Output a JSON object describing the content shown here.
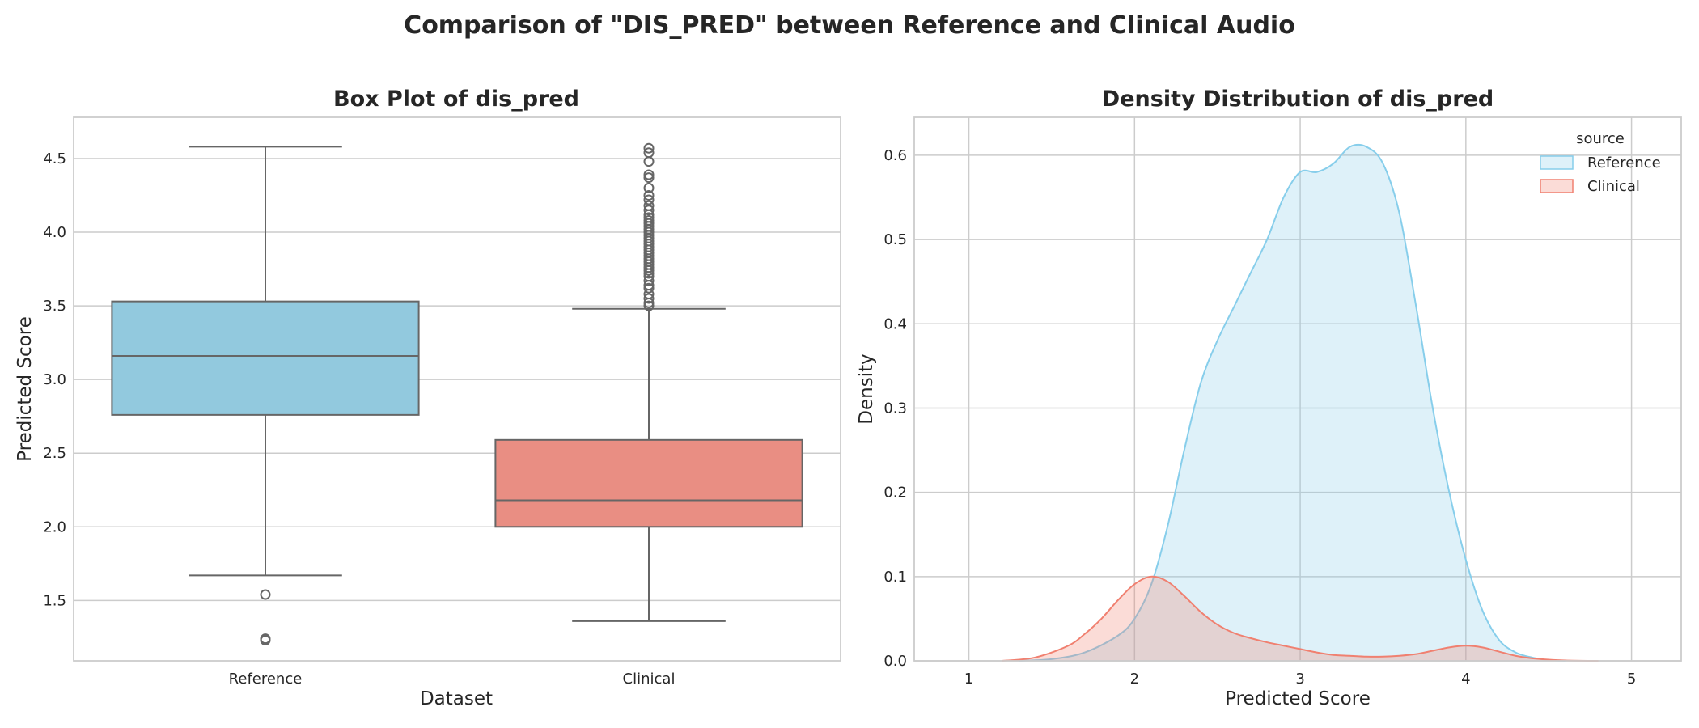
{
  "figure": {
    "suptitle": "Comparison of \"DIS_PRED\" between Reference and Clinical Audio"
  },
  "colors": {
    "reference": "#92C9DE",
    "reference_line": "#87CEEB",
    "clinical": "#E98E83",
    "clinical_line": "#F08070",
    "median_whisker": "#666666"
  },
  "chart_data": [
    {
      "type": "box",
      "title": "Box Plot of dis_pred",
      "xlabel": "Dataset",
      "ylabel": "Predicted Score",
      "categories": [
        "Reference",
        "Clinical"
      ],
      "ylim": [
        1.09,
        4.78
      ],
      "yticks": [
        1.5,
        2.0,
        2.5,
        3.0,
        3.5,
        4.0,
        4.5
      ],
      "ytick_labels": [
        "1.5",
        "2.0",
        "2.5",
        "3.0",
        "3.5",
        "4.0",
        "4.5"
      ],
      "grid": true,
      "boxes": [
        {
          "name": "Reference",
          "whisker_low": 1.67,
          "q1": 2.76,
          "median": 3.16,
          "q3": 3.53,
          "whisker_high": 4.58,
          "outliers": [
            1.54,
            1.24,
            1.23
          ]
        },
        {
          "name": "Clinical",
          "whisker_low": 1.36,
          "q1": 2.0,
          "median": 2.18,
          "q3": 2.59,
          "whisker_high": 3.48,
          "outliers": [
            3.5,
            3.52,
            3.55,
            3.58,
            3.62,
            3.64,
            3.67,
            3.7,
            3.72,
            3.74,
            3.76,
            3.78,
            3.8,
            3.82,
            3.84,
            3.86,
            3.88,
            3.9,
            3.92,
            3.94,
            3.96,
            3.98,
            4.0,
            4.02,
            4.04,
            4.06,
            4.08,
            4.1,
            4.12,
            4.15,
            4.18,
            4.22,
            4.25,
            4.3,
            4.37,
            4.39,
            4.48,
            4.54,
            4.57
          ]
        }
      ]
    },
    {
      "type": "area",
      "title": "Density Distribution of dis_pred",
      "xlabel": "Predicted Score",
      "ylabel": "Density",
      "xlim": [
        0.67,
        5.3
      ],
      "ylim": [
        0,
        0.645
      ],
      "xticks": [
        1,
        2,
        3,
        4,
        5
      ],
      "xtick_labels": [
        "1",
        "2",
        "3",
        "4",
        "5"
      ],
      "yticks": [
        0.0,
        0.1,
        0.2,
        0.3,
        0.4,
        0.5,
        0.6
      ],
      "ytick_labels": [
        "0.0",
        "0.1",
        "0.2",
        "0.3",
        "0.4",
        "0.5",
        "0.6"
      ],
      "grid": true,
      "legend": {
        "title": "source",
        "placement": "top-right"
      },
      "series": [
        {
          "name": "Reference",
          "x": [
            1.3,
            1.5,
            1.7,
            1.9,
            2.0,
            2.1,
            2.2,
            2.3,
            2.4,
            2.5,
            2.6,
            2.7,
            2.8,
            2.9,
            3.0,
            3.1,
            3.2,
            3.3,
            3.4,
            3.5,
            3.6,
            3.7,
            3.8,
            3.9,
            4.0,
            4.1,
            4.2,
            4.3,
            4.4,
            4.5,
            4.6
          ],
          "y": [
            0.0,
            0.002,
            0.01,
            0.03,
            0.05,
            0.09,
            0.16,
            0.25,
            0.33,
            0.38,
            0.42,
            0.46,
            0.5,
            0.55,
            0.58,
            0.58,
            0.59,
            0.61,
            0.61,
            0.59,
            0.53,
            0.42,
            0.3,
            0.2,
            0.12,
            0.06,
            0.025,
            0.01,
            0.004,
            0.001,
            0.0
          ]
        },
        {
          "name": "Clinical",
          "x": [
            1.2,
            1.4,
            1.6,
            1.7,
            1.8,
            1.9,
            2.0,
            2.1,
            2.2,
            2.3,
            2.4,
            2.5,
            2.6,
            2.7,
            2.8,
            2.9,
            3.0,
            3.1,
            3.2,
            3.3,
            3.4,
            3.5,
            3.6,
            3.7,
            3.8,
            3.9,
            4.0,
            4.1,
            4.2,
            4.3,
            4.4,
            4.6,
            4.8
          ],
          "y": [
            0.0,
            0.004,
            0.018,
            0.032,
            0.05,
            0.072,
            0.091,
            0.1,
            0.094,
            0.077,
            0.058,
            0.043,
            0.033,
            0.027,
            0.022,
            0.018,
            0.014,
            0.01,
            0.007,
            0.006,
            0.005,
            0.005,
            0.006,
            0.008,
            0.012,
            0.016,
            0.018,
            0.016,
            0.011,
            0.006,
            0.003,
            0.0005,
            0.0
          ]
        }
      ]
    }
  ]
}
